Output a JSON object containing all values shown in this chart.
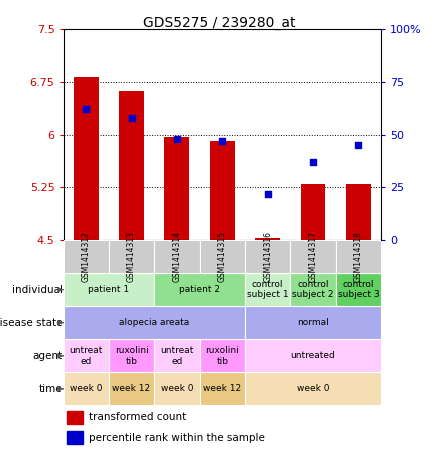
{
  "title": "GDS5275 / 239280_at",
  "samples": [
    "GSM1414312",
    "GSM1414313",
    "GSM1414314",
    "GSM1414315",
    "GSM1414316",
    "GSM1414317",
    "GSM1414318"
  ],
  "bar_values": [
    6.82,
    6.63,
    5.97,
    5.91,
    4.53,
    5.3,
    5.3
  ],
  "bar_base": 4.5,
  "percentile_values": [
    62,
    58,
    48,
    47,
    22,
    37,
    45
  ],
  "ylim_left": [
    4.5,
    7.5
  ],
  "ylim_right": [
    0,
    100
  ],
  "yticks_left": [
    4.5,
    5.25,
    6.0,
    6.75,
    7.5
  ],
  "ytick_labels_left": [
    "4.5",
    "5.25",
    "6",
    "6.75",
    "7.5"
  ],
  "yticks_right": [
    0,
    25,
    50,
    75,
    100
  ],
  "ytick_labels_right": [
    "0",
    "25",
    "50",
    "75",
    "100%"
  ],
  "bar_color": "#cc0000",
  "dot_color": "#0000cc",
  "grid_color": "black",
  "bg_color": "white",
  "left_tick_color": "#cc0000",
  "right_tick_color": "#0000cc",
  "individual_row": {
    "spans": [
      {
        "cols": [
          0,
          1
        ],
        "label": "patient 1",
        "color": "#c8f0c8"
      },
      {
        "cols": [
          2,
          3
        ],
        "label": "patient 2",
        "color": "#90e090"
      },
      {
        "cols": [
          4
        ],
        "label": "control\nsubject 1",
        "color": "#c8f0c8"
      },
      {
        "cols": [
          5
        ],
        "label": "control\nsubject 2",
        "color": "#90e090"
      },
      {
        "cols": [
          6
        ],
        "label": "control\nsubject 3",
        "color": "#60d060"
      }
    ]
  },
  "disease_row": {
    "spans": [
      {
        "cols": [
          0,
          1,
          2,
          3
        ],
        "label": "alopecia areata",
        "color": "#aaaaee"
      },
      {
        "cols": [
          4,
          5,
          6
        ],
        "label": "normal",
        "color": "#aaaaee"
      }
    ]
  },
  "agent_row": {
    "spans": [
      {
        "cols": [
          0
        ],
        "label": "untreat\ned",
        "color": "#ffccff"
      },
      {
        "cols": [
          1
        ],
        "label": "ruxolini\ntib",
        "color": "#ff99ff"
      },
      {
        "cols": [
          2
        ],
        "label": "untreat\ned",
        "color": "#ffccff"
      },
      {
        "cols": [
          3
        ],
        "label": "ruxolini\ntib",
        "color": "#ff99ff"
      },
      {
        "cols": [
          4,
          5,
          6
        ],
        "label": "untreated",
        "color": "#ffccff"
      }
    ]
  },
  "time_row": {
    "spans": [
      {
        "cols": [
          0
        ],
        "label": "week 0",
        "color": "#f5deb3"
      },
      {
        "cols": [
          1
        ],
        "label": "week 12",
        "color": "#e8c882"
      },
      {
        "cols": [
          2
        ],
        "label": "week 0",
        "color": "#f5deb3"
      },
      {
        "cols": [
          3
        ],
        "label": "week 12",
        "color": "#e8c882"
      },
      {
        "cols": [
          4,
          5,
          6
        ],
        "label": "week 0",
        "color": "#f5deb3"
      }
    ]
  },
  "row_labels": [
    "individual",
    "disease state",
    "agent",
    "time"
  ],
  "legend_bar_label": "transformed count",
  "legend_dot_label": "percentile rank within the sample"
}
